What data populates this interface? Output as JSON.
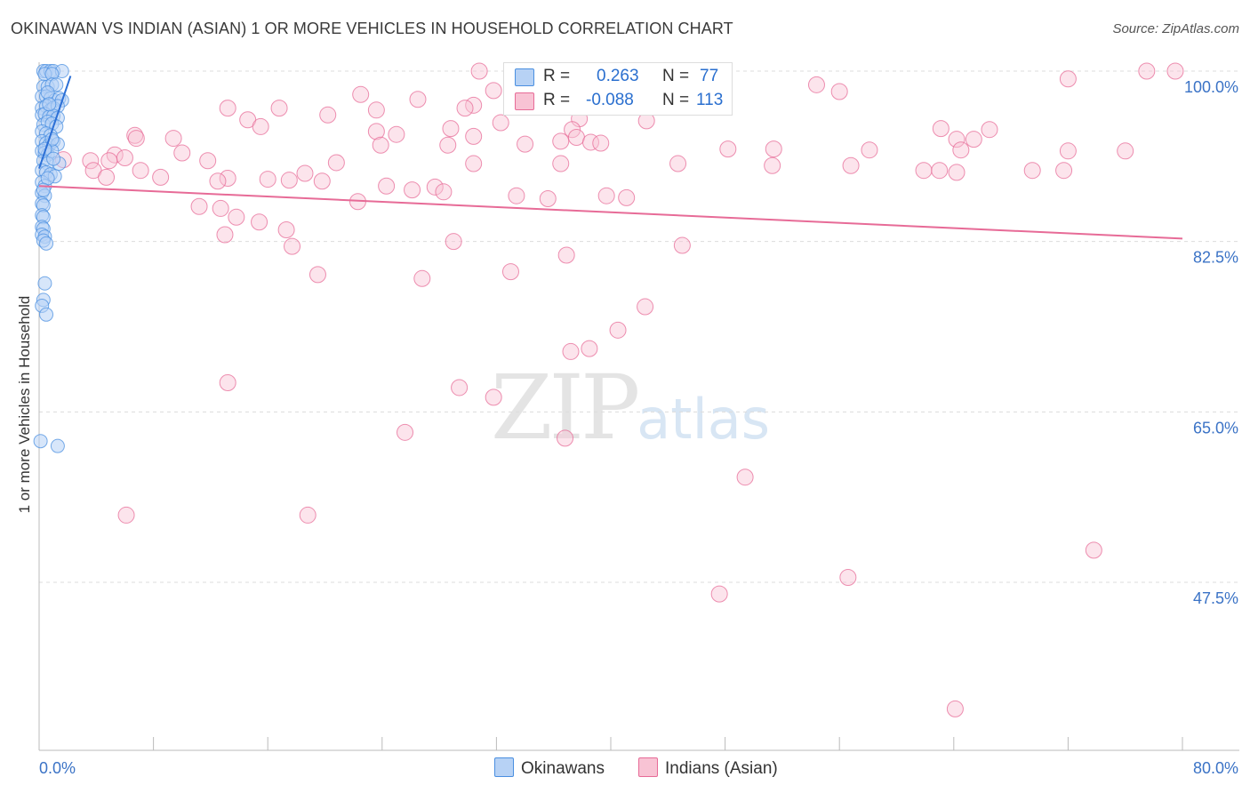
{
  "title": "OKINAWAN VS INDIAN (ASIAN) 1 OR MORE VEHICLES IN HOUSEHOLD CORRELATION CHART",
  "source": "Source: ZipAtlas.com",
  "watermark": {
    "zip": "ZIP",
    "atlas": "atlas"
  },
  "legend": {
    "row1": {
      "r_label": "R =",
      "r_value": "0.263",
      "n_label": "N =",
      "n_value": "77"
    },
    "row2": {
      "r_label": "R =",
      "r_value": "-0.088",
      "n_label": "N =",
      "n_value": "113"
    }
  },
  "bottom_legend": {
    "series1": "Okinawans",
    "series2": "Indians (Asian)"
  },
  "colors": {
    "blue": "#4a8fe0",
    "blue_fill": "#b7d2f5",
    "pink": "#e76b97",
    "pink_fill": "#f8c3d4",
    "axis_text": "#3b73c6",
    "grid": "#dcdcdc"
  },
  "chart_data": {
    "type": "scatter",
    "title": "OKINAWAN VS INDIAN (ASIAN) 1 OR MORE VEHICLES IN HOUSEHOLD CORRELATION CHART",
    "xlabel": "",
    "ylabel": "1 or more Vehicles in Household",
    "xlim": [
      0,
      80
    ],
    "ylim": [
      33,
      101
    ],
    "x_tick_labels": [
      "0.0%",
      "80.0%"
    ],
    "y_ticks": [
      100.0,
      82.5,
      65.0,
      47.5
    ],
    "y_tick_labels": [
      "100.0%",
      "82.5%",
      "65.0%",
      "47.5%"
    ],
    "series": [
      {
        "name": "Okinawans",
        "trend": {
          "x": [
            0.0,
            2.2
          ],
          "y": [
            90.0,
            99.5
          ]
        },
        "points": [
          [
            0.3,
            100
          ],
          [
            0.5,
            100
          ],
          [
            0.8,
            100
          ],
          [
            1.0,
            100
          ],
          [
            1.6,
            100
          ],
          [
            0.4,
            99.7
          ],
          [
            0.9,
            99.7
          ],
          [
            0.3,
            98.4
          ],
          [
            0.6,
            98.4
          ],
          [
            0.9,
            98.6
          ],
          [
            1.2,
            98.6
          ],
          [
            0.2,
            97.4
          ],
          [
            0.5,
            97.4
          ],
          [
            0.8,
            97.2
          ],
          [
            1.1,
            97.0
          ],
          [
            1.4,
            97.2
          ],
          [
            1.6,
            97.0
          ],
          [
            0.2,
            96.2
          ],
          [
            0.5,
            96.4
          ],
          [
            0.8,
            96.0
          ],
          [
            1.0,
            96.2
          ],
          [
            1.3,
            96.4
          ],
          [
            0.2,
            95.5
          ],
          [
            0.4,
            95.6
          ],
          [
            0.7,
            95.3
          ],
          [
            1.0,
            95.4
          ],
          [
            1.3,
            95.2
          ],
          [
            0.3,
            94.5
          ],
          [
            0.6,
            94.8
          ],
          [
            0.9,
            94.6
          ],
          [
            1.2,
            94.3
          ],
          [
            0.2,
            93.8
          ],
          [
            0.5,
            93.6
          ],
          [
            0.8,
            93.4
          ],
          [
            0.2,
            92.8
          ],
          [
            0.5,
            92.6
          ],
          [
            0.7,
            92.4
          ],
          [
            1.0,
            92.8
          ],
          [
            1.3,
            92.5
          ],
          [
            0.2,
            91.8
          ],
          [
            0.4,
            91.6
          ],
          [
            0.6,
            91.4
          ],
          [
            0.9,
            91.8
          ],
          [
            0.3,
            90.8
          ],
          [
            0.6,
            90.5
          ],
          [
            1.4,
            90.5
          ],
          [
            0.2,
            89.8
          ],
          [
            0.5,
            89.6
          ],
          [
            0.8,
            89.4
          ],
          [
            1.1,
            89.2
          ],
          [
            0.2,
            88.6
          ],
          [
            0.4,
            88.2
          ],
          [
            0.2,
            87.5
          ],
          [
            0.4,
            87.2
          ],
          [
            0.2,
            86.4
          ],
          [
            0.3,
            86.2
          ],
          [
            0.2,
            85.2
          ],
          [
            0.3,
            85.0
          ],
          [
            0.2,
            84.0
          ],
          [
            0.3,
            83.8
          ],
          [
            0.2,
            83.2
          ],
          [
            0.4,
            83.0
          ],
          [
            0.3,
            82.6
          ],
          [
            0.5,
            82.3
          ],
          [
            0.4,
            78.2
          ],
          [
            0.3,
            76.5
          ],
          [
            0.2,
            75.9
          ],
          [
            0.5,
            75.0
          ],
          [
            0.1,
            62.0
          ],
          [
            1.3,
            61.5
          ],
          [
            0.6,
            97.8
          ],
          [
            0.9,
            93.0
          ],
          [
            0.4,
            92.0
          ],
          [
            1.0,
            91.0
          ],
          [
            0.6,
            89.0
          ],
          [
            0.3,
            87.8
          ],
          [
            0.7,
            96.6
          ]
        ]
      },
      {
        "name": "Indians (Asian)",
        "trend": {
          "x": [
            0.0,
            80.0
          ],
          "y": [
            88.2,
            82.8
          ]
        },
        "points": [
          [
            30.8,
            100
          ],
          [
            47.5,
            100
          ],
          [
            77.5,
            100
          ],
          [
            79.5,
            100
          ],
          [
            54.4,
            98.6
          ],
          [
            34.5,
            98.0
          ],
          [
            31.8,
            98.0
          ],
          [
            56.0,
            97.9
          ],
          [
            72.0,
            99.2
          ],
          [
            22.5,
            97.6
          ],
          [
            26.5,
            97.1
          ],
          [
            30.4,
            96.5
          ],
          [
            29.8,
            96.2
          ],
          [
            13.2,
            96.2
          ],
          [
            16.8,
            96.2
          ],
          [
            23.6,
            96.0
          ],
          [
            20.2,
            95.5
          ],
          [
            37.8,
            95.1
          ],
          [
            42.5,
            94.9
          ],
          [
            32.3,
            94.7
          ],
          [
            14.6,
            95.0
          ],
          [
            15.5,
            94.3
          ],
          [
            28.8,
            94.1
          ],
          [
            37.3,
            94.0
          ],
          [
            63.1,
            94.1
          ],
          [
            66.5,
            94.0
          ],
          [
            23.6,
            93.8
          ],
          [
            25.0,
            93.5
          ],
          [
            30.4,
            93.3
          ],
          [
            37.6,
            93.2
          ],
          [
            64.2,
            93.0
          ],
          [
            65.4,
            93.0
          ],
          [
            6.7,
            93.4
          ],
          [
            6.8,
            93.1
          ],
          [
            9.4,
            93.1
          ],
          [
            36.5,
            92.8
          ],
          [
            38.6,
            92.7
          ],
          [
            39.3,
            92.6
          ],
          [
            34.0,
            92.5
          ],
          [
            28.6,
            92.4
          ],
          [
            23.9,
            92.4
          ],
          [
            51.4,
            92.0
          ],
          [
            48.2,
            92.0
          ],
          [
            58.1,
            91.9
          ],
          [
            64.5,
            91.9
          ],
          [
            72.0,
            91.8
          ],
          [
            76.0,
            91.8
          ],
          [
            10.0,
            91.6
          ],
          [
            5.3,
            91.4
          ],
          [
            6.0,
            91.1
          ],
          [
            1.7,
            90.9
          ],
          [
            3.6,
            90.8
          ],
          [
            4.9,
            90.8
          ],
          [
            11.8,
            90.8
          ],
          [
            20.8,
            90.6
          ],
          [
            30.4,
            90.5
          ],
          [
            36.5,
            90.5
          ],
          [
            44.7,
            90.5
          ],
          [
            51.3,
            90.3
          ],
          [
            56.8,
            90.3
          ],
          [
            61.9,
            89.8
          ],
          [
            63.0,
            89.8
          ],
          [
            64.2,
            89.6
          ],
          [
            69.5,
            89.8
          ],
          [
            71.7,
            89.8
          ],
          [
            18.6,
            89.5
          ],
          [
            7.1,
            89.8
          ],
          [
            3.8,
            89.8
          ],
          [
            4.7,
            89.1
          ],
          [
            8.5,
            89.1
          ],
          [
            13.2,
            89.0
          ],
          [
            16.0,
            88.9
          ],
          [
            17.5,
            88.8
          ],
          [
            12.5,
            88.7
          ],
          [
            19.8,
            88.7
          ],
          [
            24.3,
            88.2
          ],
          [
            27.7,
            88.1
          ],
          [
            26.1,
            87.8
          ],
          [
            28.3,
            87.6
          ],
          [
            33.4,
            87.2
          ],
          [
            39.7,
            87.2
          ],
          [
            41.1,
            87.0
          ],
          [
            35.6,
            86.9
          ],
          [
            22.3,
            86.6
          ],
          [
            11.2,
            86.1
          ],
          [
            12.7,
            85.9
          ],
          [
            13.8,
            85.0
          ],
          [
            15.4,
            84.5
          ],
          [
            17.3,
            83.7
          ],
          [
            13.0,
            83.2
          ],
          [
            29.0,
            82.5
          ],
          [
            17.7,
            82.0
          ],
          [
            45.0,
            82.1
          ],
          [
            36.9,
            81.1
          ],
          [
            19.5,
            79.1
          ],
          [
            26.8,
            78.7
          ],
          [
            33.0,
            79.4
          ],
          [
            40.5,
            73.4
          ],
          [
            38.5,
            71.5
          ],
          [
            37.2,
            71.2
          ],
          [
            42.4,
            75.8
          ],
          [
            29.4,
            67.5
          ],
          [
            25.6,
            62.9
          ],
          [
            36.8,
            62.3
          ],
          [
            49.4,
            58.3
          ],
          [
            31.8,
            66.5
          ],
          [
            18.8,
            54.4
          ],
          [
            6.1,
            54.4
          ],
          [
            73.8,
            50.8
          ],
          [
            56.6,
            48.0
          ],
          [
            47.6,
            46.3
          ],
          [
            13.2,
            68.0
          ],
          [
            64.1,
            34.5
          ]
        ]
      }
    ]
  }
}
